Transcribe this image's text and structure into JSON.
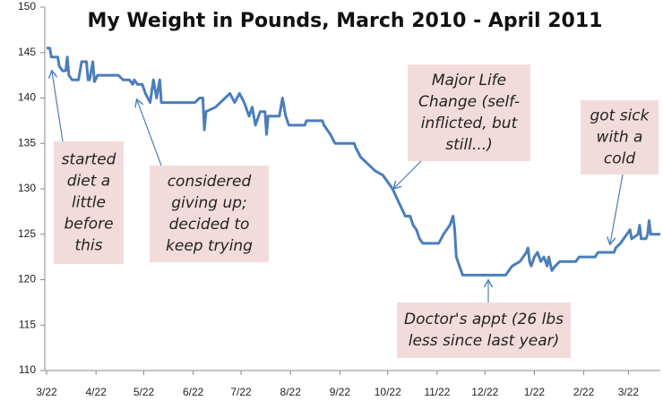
{
  "chart_data": {
    "type": "line",
    "title": "My Weight in Pounds, March 2010 - April 2011",
    "x": [
      0,
      2,
      3,
      7,
      8,
      10,
      12,
      13,
      14,
      16,
      20,
      22,
      25,
      26,
      27,
      29,
      30,
      32,
      45,
      48,
      52,
      54,
      55,
      57,
      60,
      62,
      65,
      67,
      69,
      71,
      72,
      93,
      96,
      98,
      99,
      100,
      106,
      115,
      118,
      121,
      124,
      127,
      129,
      131,
      134,
      137,
      138,
      139,
      146,
      148,
      150,
      152,
      162,
      163,
      173,
      174,
      178,
      181,
      193,
      194,
      197,
      200,
      206,
      211,
      217,
      221,
      225,
      228,
      230,
      232,
      234,
      236,
      246,
      249,
      253,
      255,
      256,
      257,
      259,
      261,
      288,
      290,
      292,
      297,
      301,
      302,
      303,
      304,
      306,
      308,
      310,
      312,
      314,
      315,
      317,
      319,
      322,
      332,
      334,
      344,
      346,
      356,
      357,
      360,
      362,
      364,
      366,
      367,
      371,
      372,
      373,
      376,
      377,
      378,
      379,
      385
    ],
    "values": [
      145.5,
      145.5,
      144.5,
      144.5,
      143.5,
      143,
      143,
      144.5,
      142.5,
      142,
      142,
      144,
      144,
      142,
      142,
      144,
      141.8,
      142.5,
      142.5,
      142,
      142,
      141.5,
      142,
      141.5,
      141.5,
      140.5,
      139.5,
      142,
      140,
      142,
      139.5,
      139.5,
      140,
      140,
      136.5,
      138.5,
      139,
      140.5,
      139.5,
      140.5,
      139.5,
      138,
      139,
      137,
      138.5,
      138.5,
      136,
      138,
      138,
      140,
      138,
      137,
      137,
      137.5,
      137.5,
      137,
      136,
      135,
      135,
      134.5,
      133.5,
      133,
      132,
      131.5,
      130,
      128.5,
      127,
      127,
      126,
      125.5,
      124.5,
      124,
      124,
      125,
      126,
      127,
      125.5,
      122.5,
      121.5,
      120.5,
      120.5,
      121,
      121.5,
      122,
      123,
      123.5,
      122,
      121.5,
      122.5,
      123,
      122,
      122.5,
      121.5,
      122.5,
      121,
      121.5,
      122,
      122,
      122.5,
      122.5,
      123,
      123,
      123.5,
      124,
      124.5,
      125,
      125.5,
      124.5,
      125,
      126,
      124.5,
      124.5,
      125,
      126.5,
      125,
      125
    ],
    "color": "#4a7ebb",
    "xlim": [
      0,
      385
    ],
    "xticks": [
      {
        "value": 0,
        "label": "3/22"
      },
      {
        "value": 31,
        "label": "4/22"
      },
      {
        "value": 61,
        "label": "5/22"
      },
      {
        "value": 92,
        "label": "6/22"
      },
      {
        "value": 122,
        "label": "7/22"
      },
      {
        "value": 153,
        "label": "8/22"
      },
      {
        "value": 184,
        "label": "9/22"
      },
      {
        "value": 214,
        "label": "10/22"
      },
      {
        "value": 245,
        "label": "11/22"
      },
      {
        "value": 275,
        "label": "12/22"
      },
      {
        "value": 306,
        "label": "1/22"
      },
      {
        "value": 337,
        "label": "2/22"
      },
      {
        "value": 365,
        "label": "3/22"
      }
    ],
    "ylim": [
      110,
      150
    ],
    "yticks": [
      110,
      115,
      120,
      125,
      130,
      135,
      140,
      145,
      150
    ],
    "grid": false,
    "annotations": [
      {
        "lines": [
          "started",
          "diet a",
          "little",
          "before",
          "this"
        ]
      },
      {
        "lines": [
          "considered",
          "giving up;",
          "decided to",
          "keep trying"
        ]
      },
      {
        "lines": [
          "Major Life",
          "Change (self-",
          "inflicted, but",
          "still...)"
        ]
      },
      {
        "lines": [
          "got sick",
          "with a",
          "cold"
        ]
      },
      {
        "lines": [
          "Doctor's appt (26 lbs",
          "less since last year)"
        ]
      }
    ]
  }
}
